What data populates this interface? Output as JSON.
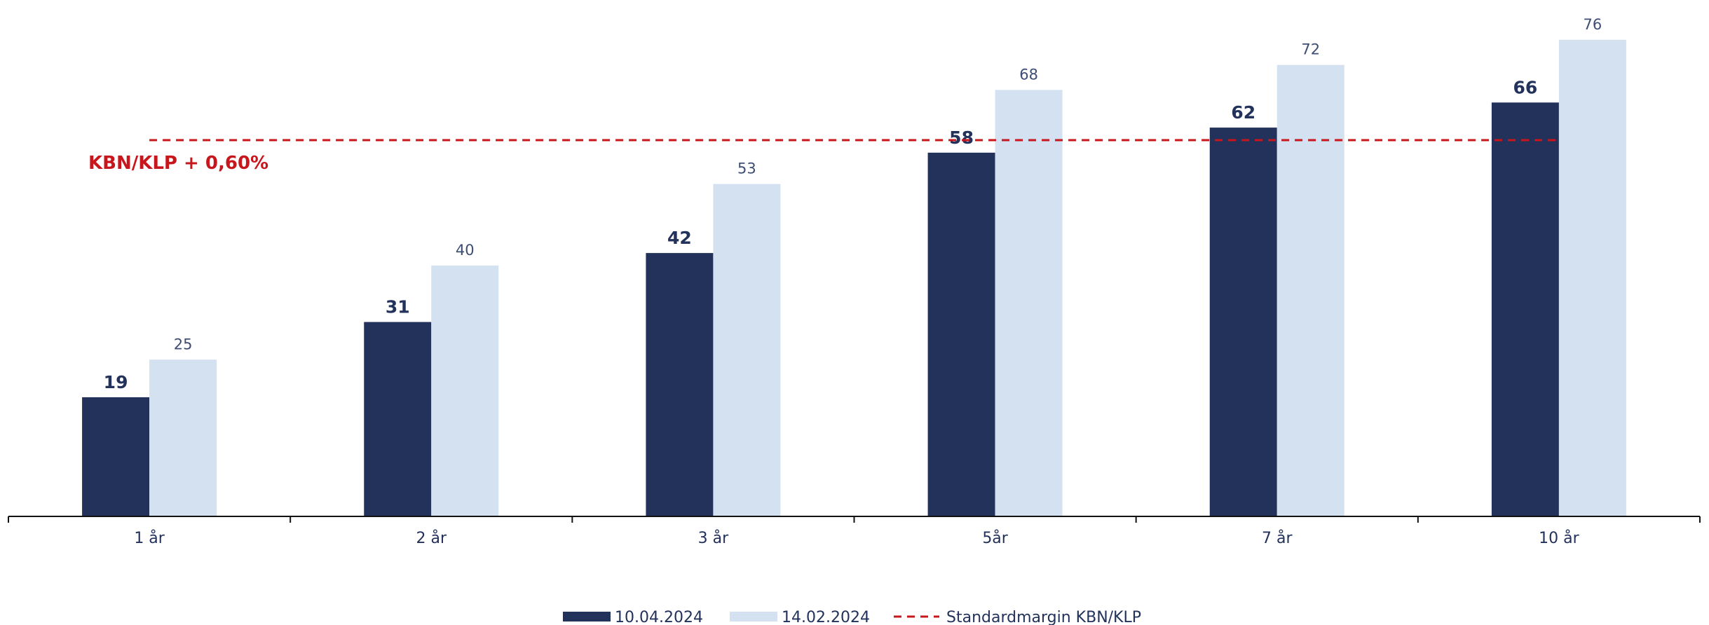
{
  "chart_data": {
    "type": "bar",
    "categories": [
      "1 år",
      "2 år",
      "3 år",
      "5år",
      "7 år",
      "10 år"
    ],
    "series": [
      {
        "name": "10.04.2024",
        "values": [
          19,
          31,
          42,
          58,
          62,
          66
        ],
        "color": "#23325a"
      },
      {
        "name": "14.02.2024",
        "values": [
          25,
          40,
          53,
          68,
          72,
          76
        ],
        "color": "#d3e1f1"
      }
    ],
    "reference_line": {
      "name": "Standardmargin KBN/KLP",
      "label": "KBN/KLP + 0,60%",
      "value": 60,
      "color": "#c8161d",
      "style": "dashed"
    },
    "title": "",
    "xlabel": "",
    "ylabel": "",
    "ylim": [
      0,
      80
    ],
    "grid": false,
    "legend": "bottom-center",
    "data_labels": true
  }
}
